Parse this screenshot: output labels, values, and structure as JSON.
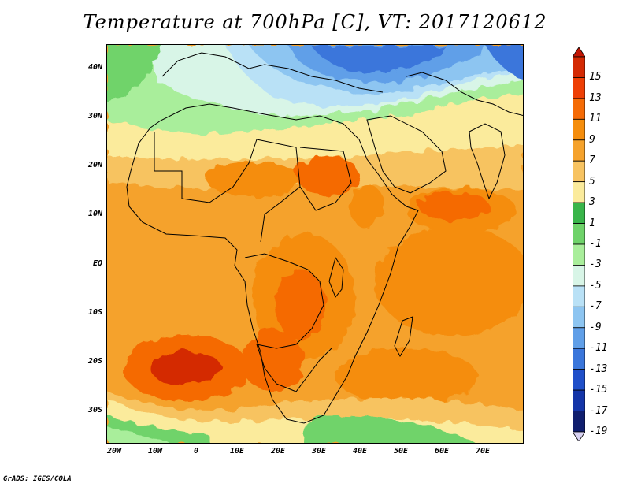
{
  "title": "Temperature at 700hPa [C], VT: 2017120612",
  "credit": "GrADS: IGES/COLA",
  "lat_labels": [
    "40N",
    "30N",
    "20N",
    "10N",
    "EQ",
    "10S",
    "20S",
    "30S"
  ],
  "lon_labels": [
    "20W",
    "10W",
    "0",
    "10E",
    "20E",
    "30E",
    "40E",
    "50E",
    "60E",
    "70E"
  ],
  "colorbar": {
    "labels": [
      "15",
      "13",
      "11",
      "9",
      "7",
      "5",
      "3",
      "1",
      "-1",
      "-3",
      "-5",
      "-7",
      "-9",
      "-11",
      "-13",
      "-15",
      "-17",
      "-19"
    ],
    "colors": [
      "#d42a04",
      "#ee3f05",
      "#f56b06",
      "#f58d0c",
      "#f5a22c",
      "#f7c361",
      "#fbeb9c",
      "#39b54a",
      "#6fd36a",
      "#a9ee9b",
      "#d8f5e7",
      "#b9e1f6",
      "#8dc5f1",
      "#609fe8",
      "#3a76db",
      "#1f4fc9",
      "#1435a8",
      "#101e6e"
    ],
    "top_arrow_color": "#c21604",
    "bottom_arrow_color": "#d8d2f2"
  }
}
